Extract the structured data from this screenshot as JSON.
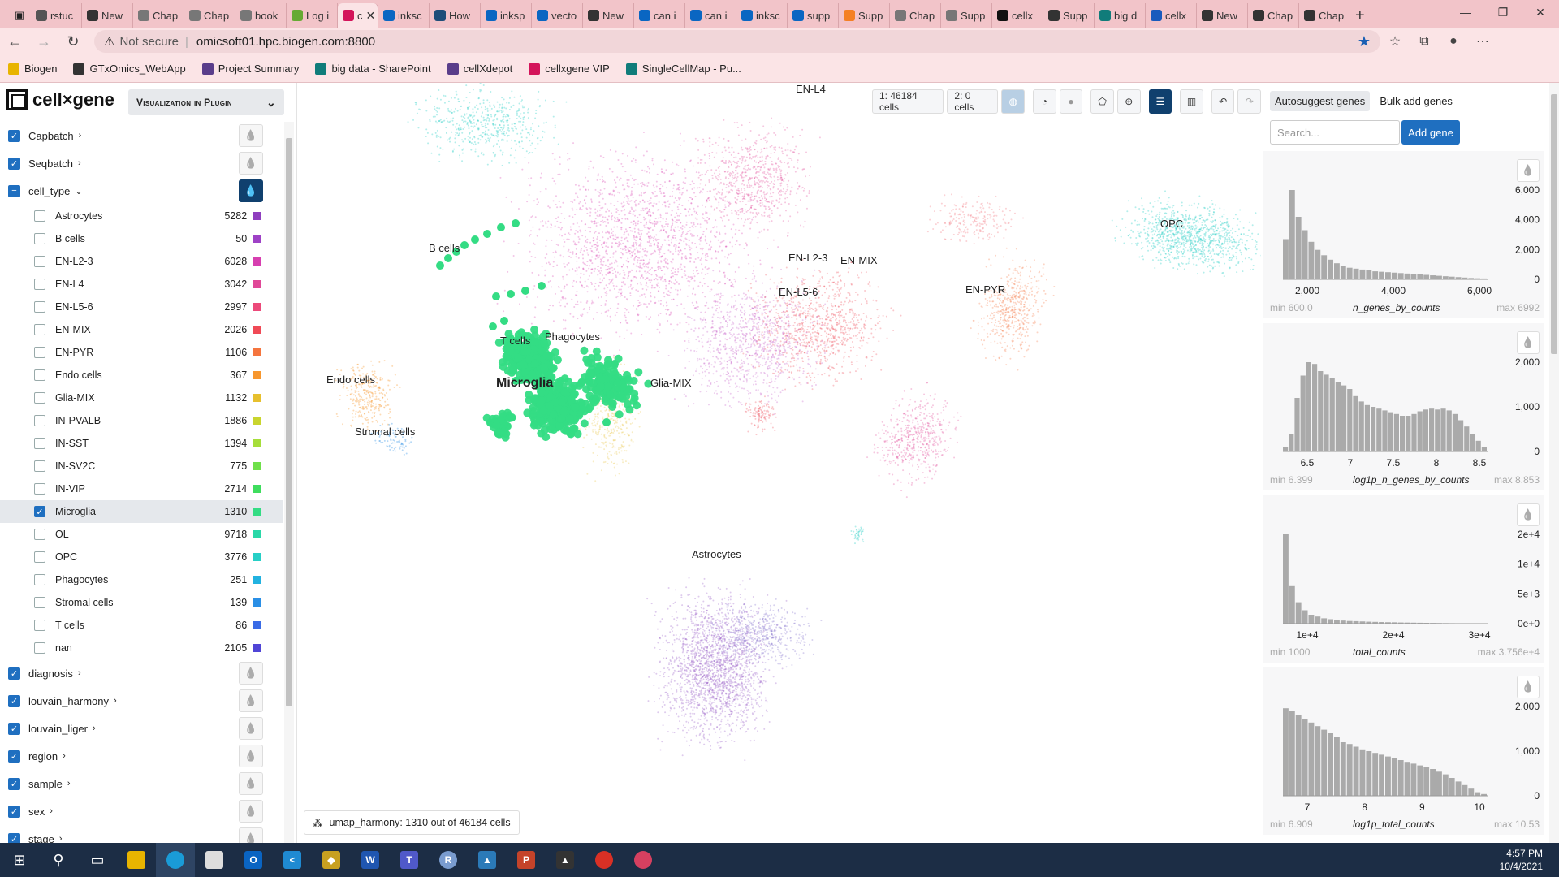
{
  "browser": {
    "tabs": [
      {
        "label": "rstuc",
        "color": "#555"
      },
      {
        "label": "New",
        "color": "#333"
      },
      {
        "label": "Chap",
        "color": "#777"
      },
      {
        "label": "Chap",
        "color": "#777"
      },
      {
        "label": "book",
        "color": "#777"
      },
      {
        "label": "Log i",
        "color": "#6a3"
      },
      {
        "label": "c",
        "color": "#d4145a",
        "active": true
      },
      {
        "label": "inksc",
        "color": "#0a66c2"
      },
      {
        "label": "How",
        "color": "#1f4e79"
      },
      {
        "label": "inksp",
        "color": "#0a66c2"
      },
      {
        "label": "vecto",
        "color": "#0a66c2"
      },
      {
        "label": "New",
        "color": "#333"
      },
      {
        "label": "can i",
        "color": "#0a66c2"
      },
      {
        "label": "can i",
        "color": "#0a66c2"
      },
      {
        "label": "inksc",
        "color": "#0a66c2"
      },
      {
        "label": "supp",
        "color": "#0a66c2"
      },
      {
        "label": "Supp",
        "color": "#f48024"
      },
      {
        "label": "Chap",
        "color": "#777"
      },
      {
        "label": "Supp",
        "color": "#777"
      },
      {
        "label": "cellx",
        "color": "#111"
      },
      {
        "label": "Supp",
        "color": "#333"
      },
      {
        "label": "big d",
        "color": "#107c7a"
      },
      {
        "label": "cellx",
        "color": "#185abd"
      },
      {
        "label": "New",
        "color": "#333"
      },
      {
        "label": "Chap",
        "color": "#333"
      },
      {
        "label": "Chap",
        "color": "#333"
      }
    ],
    "not_secure": "Not secure",
    "url": "omicsoft01.hpc.biogen.com:8800",
    "bookmarks": [
      {
        "label": "Biogen",
        "color": "#e8b400"
      },
      {
        "label": "GTxOmics_WebApp",
        "color": "#333"
      },
      {
        "label": "Project Summary",
        "color": "#5a3d8a"
      },
      {
        "label": "big data - SharePoint",
        "color": "#107c7a"
      },
      {
        "label": "cellXdepot",
        "color": "#5a3d8a"
      },
      {
        "label": "cellxgene VIP",
        "color": "#d4145a"
      },
      {
        "label": "SingleCellMap - Pu...",
        "color": "#107c7a"
      }
    ]
  },
  "app": {
    "logo": "cell×gene",
    "plugin_dropdown": "Visualization in Plugin",
    "categories_top": [
      {
        "name": "Capbatch",
        "checked": true
      },
      {
        "name": "Seqbatch",
        "checked": true
      }
    ],
    "cell_type": {
      "name": "cell_type",
      "values": [
        {
          "name": "Astrocytes",
          "count": "5282",
          "color": "#8f3fbf"
        },
        {
          "name": "B cells",
          "count": "50",
          "color": "#9e42c6"
        },
        {
          "name": "EN-L2-3",
          "count": "6028",
          "color": "#d73fb0"
        },
        {
          "name": "EN-L4",
          "count": "3042",
          "color": "#e04898"
        },
        {
          "name": "EN-L5-6",
          "count": "2997",
          "color": "#ec4a7a"
        },
        {
          "name": "EN-MIX",
          "count": "2026",
          "color": "#f04a56"
        },
        {
          "name": "EN-PYR",
          "count": "1106",
          "color": "#f5753e"
        },
        {
          "name": "Endo cells",
          "count": "367",
          "color": "#f7972e"
        },
        {
          "name": "Glia-MIX",
          "count": "1132",
          "color": "#e7c02e"
        },
        {
          "name": "IN-PVALB",
          "count": "1886",
          "color": "#c9d52e"
        },
        {
          "name": "IN-SST",
          "count": "1394",
          "color": "#a6de3a"
        },
        {
          "name": "IN-SV2C",
          "count": "775",
          "color": "#6fe04a"
        },
        {
          "name": "IN-VIP",
          "count": "2714",
          "color": "#3fdd5e"
        },
        {
          "name": "Microglia",
          "count": "1310",
          "color": "#34dc84",
          "checked": true
        },
        {
          "name": "OL",
          "count": "9718",
          "color": "#2ad8a8"
        },
        {
          "name": "OPC",
          "count": "3776",
          "color": "#27cfc6"
        },
        {
          "name": "Phagocytes",
          "count": "251",
          "color": "#22b2e0"
        },
        {
          "name": "Stromal cells",
          "count": "139",
          "color": "#2a8fe6"
        },
        {
          "name": "T cells",
          "count": "86",
          "color": "#3a6be6"
        },
        {
          "name": "nan",
          "count": "2105",
          "color": "#5045d6"
        }
      ]
    },
    "categories_bottom": [
      {
        "name": "diagnosis"
      },
      {
        "name": "louvain_harmony"
      },
      {
        "name": "louvain_liger"
      },
      {
        "name": "region"
      },
      {
        "name": "sample"
      },
      {
        "name": "sex"
      },
      {
        "name": "stage"
      }
    ],
    "toolbar": {
      "set1": "1: 46184 cells",
      "set2": "2: 0 cells"
    },
    "cluster_labels": [
      {
        "text": "EN-L4"
      },
      {
        "text": "B cells"
      },
      {
        "text": "OPC"
      },
      {
        "text": "EN-L2-3"
      },
      {
        "text": "EN-MIX"
      },
      {
        "text": "EN-L5-6"
      },
      {
        "text": "EN-PYR"
      },
      {
        "text": "T cells"
      },
      {
        "text": "Phagocytes"
      },
      {
        "text": "Microglia"
      },
      {
        "text": "Glia-MIX"
      },
      {
        "text": "Endo cells"
      },
      {
        "text": "Stromal cells"
      },
      {
        "text": "Astrocytes"
      }
    ],
    "embedding_label": "umap_harmony: 1310 out of 46184 cells",
    "right": {
      "tab_autosuggest": "Autosuggest genes",
      "tab_bulk": "Bulk add genes",
      "search_placeholder": "Search...",
      "add_gene": "Add gene",
      "histograms": [
        {
          "name": "n_genes_by_counts",
          "min": "min 600.0",
          "max": "max 6992",
          "yticks": [
            "6,000",
            "4,000",
            "2,000",
            "0"
          ],
          "xticks": [
            "2,000",
            "4,000",
            "6,000"
          ]
        },
        {
          "name": "log1p_n_genes_by_counts",
          "min": "min 6.399",
          "max": "max 8.853",
          "yticks": [
            "2,000",
            "1,000",
            "0"
          ],
          "xticks": [
            "6.5",
            "7",
            "7.5",
            "8",
            "8.5"
          ]
        },
        {
          "name": "total_counts",
          "min": "min 1000",
          "max": "max 3.756e+4",
          "yticks": [
            "2e+4",
            "1e+4",
            "5e+3",
            "0e+0"
          ],
          "xticks": [
            "1e+4",
            "2e+4",
            "3e+4"
          ]
        },
        {
          "name": "log1p_total_counts",
          "min": "min 6.909",
          "max": "max 10.53",
          "yticks": [
            "2,000",
            "1,000",
            "0"
          ],
          "xticks": [
            "7",
            "8",
            "9",
            "10"
          ]
        }
      ]
    }
  },
  "taskbar": {
    "time": "4:57 PM",
    "date": "10/4/2021"
  }
}
